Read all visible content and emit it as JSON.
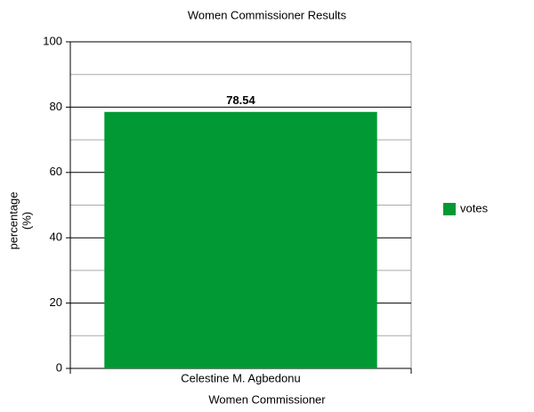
{
  "chart_data": {
    "type": "bar",
    "title": "Women Commissioner Results",
    "xlabel": "Women Commissioner",
    "ylabel": [
      "percentage",
      "(%)"
    ],
    "categories": [
      "Celestine M. Agbedonu"
    ],
    "series": [
      {
        "name": "votes",
        "color": "#009933",
        "values": [
          78.54
        ]
      }
    ],
    "ylim": [
      0,
      100
    ],
    "yticks": [
      0,
      20,
      40,
      60,
      80,
      100
    ],
    "yminorticks": [
      10,
      30,
      50,
      70,
      90
    ],
    "grid": true,
    "legend": "right",
    "data_labels": true
  }
}
